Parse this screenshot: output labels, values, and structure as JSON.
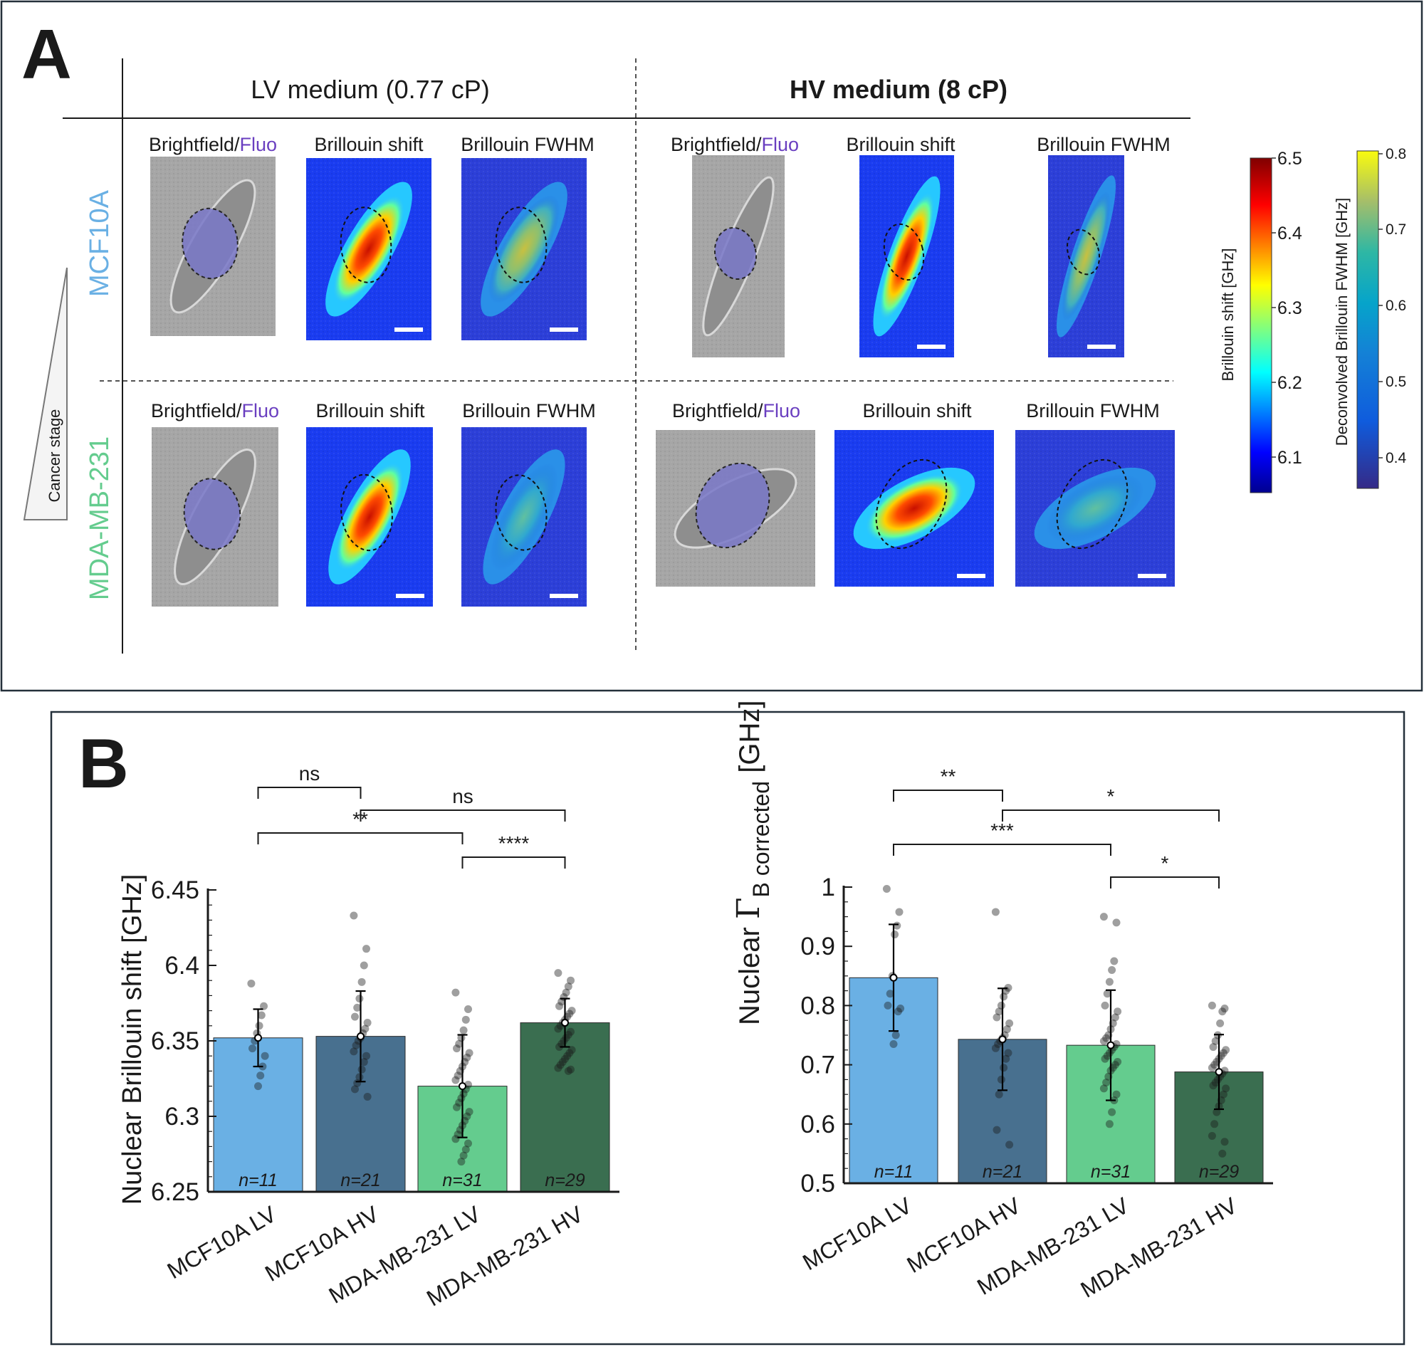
{
  "panel_a": {
    "letter": "A",
    "col_lv": "LV medium (0.77 cP)",
    "col_hv": "HV medium (8 cP)",
    "row_mcf": "MCF10A",
    "row_mda": "MDA-MB-231",
    "cancer_stage": "Cancer stage",
    "img_bf": "Brightfield/",
    "img_fluo": "Fluo",
    "img_shift": "Brillouin shift",
    "img_fwhm": "Brillouin FWHM",
    "cbar1_label": "Brillouin shift [GHz]",
    "cbar2_label": "Deconvolved Brillouin FWHM [GHz]",
    "cbar1_ticks": [
      "6.5",
      "6.4",
      "6.3",
      "6.2",
      "6.1"
    ],
    "cbar2_ticks": [
      "0.8",
      "0.7",
      "0.6",
      "0.5",
      "0.4"
    ]
  },
  "panel_b": {
    "letter": "B"
  },
  "colors": {
    "mcf_lv": "#6ab0e4",
    "mcf_hv": "#48708f",
    "mda_lv": "#64cc8e",
    "mda_hv": "#3a6e50",
    "mcf_label": "#6ab0e4",
    "mda_label": "#64cc8e",
    "fluo": "#6a3fc0"
  },
  "chart_data": [
    {
      "type": "bar",
      "title": "",
      "ylabel": "Nuclear Brillouin shift [GHz]",
      "ylim": [
        6.25,
        6.45
      ],
      "yticks": [
        "6.25",
        "6.3",
        "6.35",
        "6.4",
        "6.45"
      ],
      "categories": [
        "MCF10A LV",
        "MCF10A HV",
        "MDA-MB-231 LV",
        "MDA-MB-231 HV"
      ],
      "values": [
        6.352,
        6.353,
        6.32,
        6.362
      ],
      "errors": [
        0.019,
        0.03,
        0.034,
        0.016
      ],
      "n_labels": [
        "n=11",
        "n=21",
        "n=31",
        "n=29"
      ],
      "points": [
        [
          6.388,
          6.373,
          6.367,
          6.36,
          6.355,
          6.35,
          6.345,
          6.34,
          6.333,
          6.327,
          6.32
        ],
        [
          6.433,
          6.411,
          6.4,
          6.389,
          6.378,
          6.372,
          6.366,
          6.362,
          6.358,
          6.355,
          6.352,
          6.35,
          6.347,
          6.343,
          6.34,
          6.336,
          6.331,
          6.326,
          6.322,
          6.318,
          6.313
        ],
        [
          6.382,
          6.371,
          6.364,
          6.357,
          6.352,
          6.348,
          6.345,
          6.342,
          6.339,
          6.336,
          6.333,
          6.33,
          6.327,
          6.324,
          6.321,
          6.318,
          6.315,
          6.312,
          6.309,
          6.306,
          6.303,
          6.3,
          6.297,
          6.294,
          6.291,
          6.288,
          6.285,
          6.282,
          6.278,
          6.274,
          6.27
        ],
        [
          6.395,
          6.39,
          6.386,
          6.382,
          6.379,
          6.376,
          6.373,
          6.37,
          6.368,
          6.366,
          6.364,
          6.362,
          6.36,
          6.358,
          6.356,
          6.354,
          6.352,
          6.35,
          6.348,
          6.346,
          6.344,
          6.342,
          6.34,
          6.338,
          6.336,
          6.334,
          6.332,
          6.331,
          6.33
        ]
      ],
      "significance": [
        {
          "from": 0,
          "to": 1,
          "label": "ns",
          "level": 0
        },
        {
          "from": 1,
          "to": 3,
          "label": "ns",
          "level": 1
        },
        {
          "from": 0,
          "to": 2,
          "label": "**",
          "level": 2
        },
        {
          "from": 2,
          "to": 3,
          "label": "****",
          "level": 3
        }
      ]
    },
    {
      "type": "bar",
      "title": "",
      "ylabel": "Nuclear Γ B corrected [GHz]",
      "ylabel_prefix": "Nuclear ",
      "ylabel_symbol": "Γ",
      "ylabel_sub": "B corrected",
      "ylabel_suffix": " [GHz]",
      "ylim": [
        0.5,
        1.0
      ],
      "yticks": [
        "0.5",
        "0.6",
        "0.7",
        "0.8",
        "0.9",
        "1"
      ],
      "categories": [
        "MCF10A LV",
        "MCF10A HV",
        "MDA-MB-231 LV",
        "MDA-MB-231 HV"
      ],
      "values": [
        0.847,
        0.743,
        0.733,
        0.688
      ],
      "errors": [
        0.09,
        0.086,
        0.093,
        0.063
      ],
      "n_labels": [
        "n=11",
        "n=21",
        "n=31",
        "n=29"
      ],
      "points": [
        [
          0.997,
          0.958,
          0.935,
          0.92,
          0.85,
          0.82,
          0.8,
          0.795,
          0.79,
          0.75,
          0.735
        ],
        [
          0.958,
          0.83,
          0.825,
          0.815,
          0.8,
          0.79,
          0.78,
          0.77,
          0.76,
          0.75,
          0.745,
          0.74,
          0.735,
          0.728,
          0.72,
          0.71,
          0.695,
          0.675,
          0.65,
          0.59,
          0.565
        ],
        [
          0.95,
          0.94,
          0.875,
          0.86,
          0.84,
          0.82,
          0.8,
          0.79,
          0.78,
          0.77,
          0.76,
          0.75,
          0.745,
          0.74,
          0.735,
          0.73,
          0.725,
          0.72,
          0.715,
          0.71,
          0.705,
          0.7,
          0.695,
          0.69,
          0.68,
          0.67,
          0.66,
          0.65,
          0.64,
          0.62,
          0.6
        ],
        [
          0.8,
          0.795,
          0.79,
          0.77,
          0.75,
          0.74,
          0.73,
          0.725,
          0.72,
          0.715,
          0.71,
          0.705,
          0.7,
          0.695,
          0.69,
          0.685,
          0.68,
          0.675,
          0.67,
          0.665,
          0.66,
          0.65,
          0.64,
          0.63,
          0.62,
          0.6,
          0.58,
          0.57,
          0.55
        ]
      ],
      "significance": [
        {
          "from": 0,
          "to": 1,
          "label": "**",
          "level": 0
        },
        {
          "from": 1,
          "to": 3,
          "label": "*",
          "level": 1
        },
        {
          "from": 0,
          "to": 2,
          "label": "***",
          "level": 2
        },
        {
          "from": 2,
          "to": 3,
          "label": "*",
          "level": 3
        }
      ]
    }
  ]
}
